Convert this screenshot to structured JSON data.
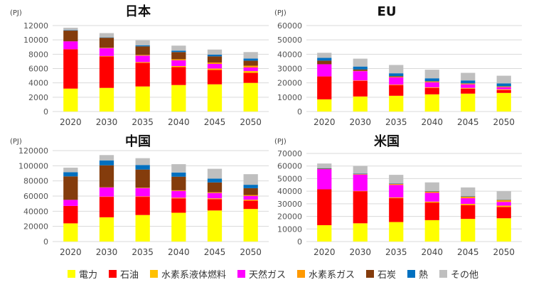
{
  "chart_data": [
    {
      "type": "bar",
      "stacked": true,
      "title": "日本",
      "unit": "(PJ)",
      "categories": [
        "2020",
        "2030",
        "2035",
        "2040",
        "2045",
        "2050"
      ],
      "ylim": [
        0,
        12000
      ],
      "yticks": [
        0,
        2000,
        4000,
        6000,
        8000,
        10000,
        12000
      ],
      "series": [
        {
          "name": "電力",
          "values": [
            3200,
            3300,
            3500,
            3700,
            3800,
            4000
          ]
        },
        {
          "name": "石油",
          "values": [
            5500,
            4400,
            3300,
            2500,
            2000,
            1400
          ]
        },
        {
          "name": "水素系液体燃料",
          "values": [
            0,
            50,
            100,
            150,
            200,
            250
          ]
        },
        {
          "name": "天然ガス",
          "values": [
            1100,
            1100,
            900,
            800,
            650,
            500
          ]
        },
        {
          "name": "水素系ガス",
          "values": [
            0,
            50,
            100,
            150,
            200,
            250
          ]
        },
        {
          "name": "石炭",
          "values": [
            1500,
            1400,
            1200,
            1000,
            850,
            700
          ]
        },
        {
          "name": "熱",
          "values": [
            50,
            50,
            150,
            200,
            250,
            300
          ]
        },
        {
          "name": "その他",
          "values": [
            350,
            600,
            700,
            700,
            700,
            900
          ]
        }
      ]
    },
    {
      "type": "bar",
      "stacked": true,
      "title": "EU",
      "unit": "(PJ)",
      "categories": [
        "2020",
        "2030",
        "2035",
        "2040",
        "2045",
        "2050"
      ],
      "ylim": [
        0,
        60000
      ],
      "yticks": [
        0,
        10000,
        20000,
        30000,
        40000,
        50000,
        60000
      ],
      "series": [
        {
          "name": "電力",
          "values": [
            8500,
            10500,
            11000,
            12000,
            12500,
            13000
          ]
        },
        {
          "name": "石油",
          "values": [
            16000,
            11000,
            7500,
            4500,
            3500,
            2000
          ]
        },
        {
          "name": "水素系液体燃料",
          "values": [
            0,
            200,
            300,
            400,
            500,
            500
          ]
        },
        {
          "name": "天然ガス",
          "values": [
            8500,
            6500,
            5000,
            3500,
            2500,
            1500
          ]
        },
        {
          "name": "水素系ガス",
          "values": [
            0,
            200,
            400,
            500,
            500,
            500
          ]
        },
        {
          "name": "石炭",
          "values": [
            2500,
            1000,
            500,
            300,
            200,
            100
          ]
        },
        {
          "name": "熱",
          "values": [
            2000,
            2000,
            2000,
            2000,
            2000,
            2000
          ]
        },
        {
          "name": "その他",
          "values": [
            3500,
            5500,
            5800,
            6000,
            5300,
            5400
          ]
        }
      ]
    },
    {
      "type": "bar",
      "stacked": true,
      "title": "中国",
      "unit": "(PJ)",
      "categories": [
        "2020",
        "2030",
        "2035",
        "2040",
        "2045",
        "2050"
      ],
      "ylim": [
        0,
        120000
      ],
      "yticks": [
        0,
        20000,
        40000,
        60000,
        80000,
        100000,
        120000
      ],
      "series": [
        {
          "name": "電力",
          "values": [
            24000,
            32000,
            35000,
            38000,
            41000,
            43000
          ]
        },
        {
          "name": "石油",
          "values": [
            23000,
            27000,
            24000,
            19000,
            15000,
            11000
          ]
        },
        {
          "name": "水素系液体燃料",
          "values": [
            0,
            300,
            500,
            800,
            1000,
            1200
          ]
        },
        {
          "name": "天然ガス",
          "values": [
            8000,
            12000,
            11000,
            9000,
            7000,
            5000
          ]
        },
        {
          "name": "水素系ガス",
          "values": [
            0,
            300,
            500,
            800,
            1000,
            1200
          ]
        },
        {
          "name": "石炭",
          "values": [
            31000,
            29000,
            24000,
            18000,
            13000,
            9000
          ]
        },
        {
          "name": "熱",
          "values": [
            5500,
            6500,
            6000,
            5500,
            5000,
            4500
          ]
        },
        {
          "name": "その他",
          "values": [
            6000,
            7000,
            9000,
            11000,
            13000,
            14000
          ]
        }
      ]
    },
    {
      "type": "bar",
      "stacked": true,
      "title": "米国",
      "unit": "(PJ)",
      "categories": [
        "2020",
        "2030",
        "2035",
        "2040",
        "2045",
        "2050"
      ],
      "ylim": [
        0,
        70000
      ],
      "yticks": [
        0,
        10000,
        20000,
        30000,
        40000,
        50000,
        60000,
        70000
      ],
      "series": [
        {
          "name": "電力",
          "values": [
            13000,
            14500,
            15500,
            17000,
            18000,
            18500
          ]
        },
        {
          "name": "石油",
          "values": [
            28500,
            25500,
            19000,
            14000,
            11000,
            9000
          ]
        },
        {
          "name": "水素系液体燃料",
          "values": [
            0,
            200,
            500,
            700,
            900,
            1000
          ]
        },
        {
          "name": "天然ガス",
          "values": [
            16000,
            13000,
            10000,
            7000,
            4500,
            3000
          ]
        },
        {
          "name": "水素系ガス",
          "values": [
            0,
            300,
            700,
            1000,
            1300,
            1500
          ]
        },
        {
          "name": "石炭",
          "values": [
            500,
            300,
            200,
            100,
            100,
            100
          ]
        },
        {
          "name": "熱",
          "values": [
            300,
            300,
            300,
            300,
            300,
            300
          ]
        },
        {
          "name": "その他",
          "values": [
            3700,
            6000,
            6800,
            6900,
            6900,
            6600
          ]
        }
      ]
    }
  ],
  "legend": {
    "items": [
      {
        "label": "電力",
        "color": "#FFFF00"
      },
      {
        "label": "石油",
        "color": "#FF0000"
      },
      {
        "label": "水素系液体燃料",
        "color": "#FFC000"
      },
      {
        "label": "天然ガス",
        "color": "#FF00FF"
      },
      {
        "label": "水素系ガス",
        "color": "#FF9900"
      },
      {
        "label": "石炭",
        "color": "#843C0C"
      },
      {
        "label": "熱",
        "color": "#0070C0"
      },
      {
        "label": "その他",
        "color": "#BFBFBF"
      }
    ]
  }
}
